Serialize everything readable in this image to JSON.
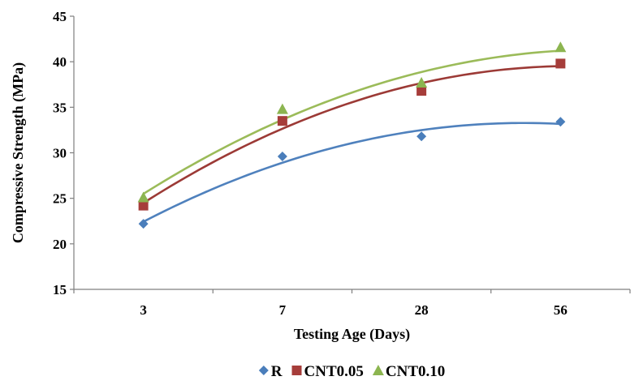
{
  "chart_data": {
    "type": "scatter",
    "categories": [
      "3",
      "7",
      "28",
      "56"
    ],
    "xlabel": "Testing Age (Days)",
    "ylabel": "Compressive Strength (MPa)",
    "ylim": [
      15,
      45
    ],
    "yticks": [
      "15",
      "20",
      "25",
      "30",
      "35",
      "40",
      "45"
    ],
    "grid": false,
    "legend_position": "bottom",
    "trendlines": true,
    "series": [
      {
        "name": "R",
        "marker": "diamond",
        "color": "#4a7ebb",
        "trend_color": "#4f81bd",
        "values": [
          22.2,
          29.6,
          31.8,
          33.4
        ]
      },
      {
        "name": "CNT0.05",
        "marker": "square",
        "color": "#a63d3a",
        "trend_color": "#9c3a36",
        "values": [
          24.2,
          33.5,
          36.8,
          39.8
        ]
      },
      {
        "name": "CNT0.10",
        "marker": "triangle",
        "color": "#8cb550",
        "trend_color": "#9bbb59",
        "values": [
          25.1,
          34.8,
          37.7,
          41.6
        ]
      }
    ]
  }
}
